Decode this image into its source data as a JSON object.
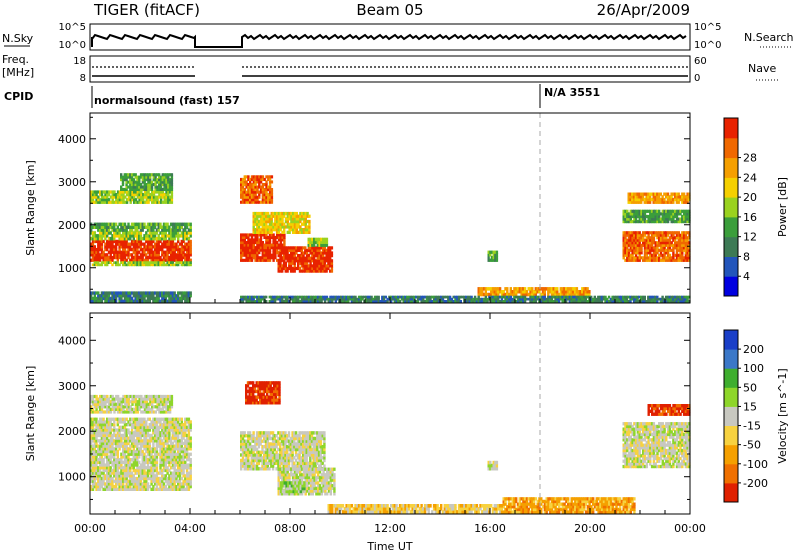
{
  "header": {
    "station": "TIGER (fitACF)",
    "beam": "Beam 05",
    "date": "26/Apr/2009"
  },
  "strip_labels": {
    "nsky": "N.Sky",
    "nsearch": "N.Search",
    "freq_line1": "Freq.",
    "freq_line2": "[MHz]",
    "nave": "Nave",
    "cpid": "CPID",
    "nsky_ticks": [
      "10^5",
      "10^0"
    ],
    "nsearch_ticks": [
      "10^5",
      "10^0"
    ],
    "freq_ticks": [
      "18",
      "8"
    ],
    "nave_ticks": [
      "60",
      "0"
    ]
  },
  "cpid": {
    "segment1": "normalsound (fast) 157",
    "segment2": "N/A 3551"
  },
  "chart_data": [
    {
      "type": "heatmap",
      "panel": "power",
      "ylabel": "Slant Range [km]",
      "xlabel": "",
      "ylim": [
        180,
        4600
      ],
      "yticks": [
        1000,
        2000,
        3000,
        4000
      ],
      "xlim": [
        0,
        24
      ],
      "colorbar": {
        "label": "Power [dB]",
        "ticks": [
          "4",
          "8",
          "12",
          "16",
          "20",
          "24",
          "28"
        ],
        "colors": [
          "#0000e0",
          "#2255bb",
          "#3d7a55",
          "#3b9e3b",
          "#9ad21f",
          "#f5d000",
          "#f59f00",
          "#f06800",
          "#e82200"
        ]
      },
      "regions": [
        {
          "t0": 0.0,
          "t1": 4.05,
          "r0": 1150,
          "r1": 1650,
          "level": 8
        },
        {
          "t0": 0.0,
          "t1": 4.05,
          "r0": 1650,
          "r1": 1850,
          "level": 4
        },
        {
          "t0": 0.0,
          "t1": 4.05,
          "r0": 1050,
          "r1": 1150,
          "level": 4
        },
        {
          "t0": 0.0,
          "t1": 4.05,
          "r0": 1850,
          "r1": 2050,
          "level": 3
        },
        {
          "t0": 0.0,
          "t1": 3.3,
          "r0": 2500,
          "r1": 2800,
          "level": 4
        },
        {
          "t0": 1.2,
          "t1": 3.3,
          "r0": 2800,
          "r1": 3200,
          "level": 3
        },
        {
          "t0": 6.0,
          "t1": 7.8,
          "r0": 1150,
          "r1": 1800,
          "level": 8
        },
        {
          "t0": 6.0,
          "t1": 7.3,
          "r0": 2500,
          "r1": 3150,
          "level": 7
        },
        {
          "t0": 6.5,
          "t1": 8.8,
          "r0": 1800,
          "r1": 2300,
          "level": 5
        },
        {
          "t0": 7.5,
          "t1": 9.7,
          "r0": 900,
          "r1": 1500,
          "level": 8
        },
        {
          "t0": 8.7,
          "t1": 9.5,
          "r0": 1500,
          "r1": 1700,
          "level": 4
        },
        {
          "t0": 15.9,
          "t1": 16.3,
          "r0": 1150,
          "r1": 1400,
          "level": 3
        },
        {
          "t0": 15.5,
          "t1": 20.0,
          "r0": 350,
          "r1": 550,
          "level": 6
        },
        {
          "t0": 0.0,
          "t1": 4.05,
          "r0": 200,
          "r1": 450,
          "level": 2
        },
        {
          "t0": 6.0,
          "t1": 24.0,
          "r0": 200,
          "r1": 350,
          "level": 2
        },
        {
          "t0": 21.3,
          "t1": 24.0,
          "r0": 1150,
          "r1": 1850,
          "level": 7
        },
        {
          "t0": 21.3,
          "t1": 24.0,
          "r0": 2050,
          "r1": 2350,
          "level": 3
        },
        {
          "t0": 21.5,
          "t1": 24.0,
          "r0": 2500,
          "r1": 2750,
          "level": 6
        }
      ]
    },
    {
      "type": "heatmap",
      "panel": "velocity",
      "ylabel": "Slant Range [km]",
      "xlabel": "Time UT",
      "ylim": [
        180,
        4600
      ],
      "yticks": [
        1000,
        2000,
        3000,
        4000
      ],
      "xlim": [
        0,
        24
      ],
      "xticks": [
        "00:00",
        "04:00",
        "08:00",
        "12:00",
        "16:00",
        "20:00",
        "00:00"
      ],
      "colorbar": {
        "label": "Velocity [m s^-1]",
        "ticks": [
          "200",
          "100",
          "50",
          "15",
          "-15",
          "-50",
          "-100",
          "-200"
        ],
        "colors": [
          "#1a3fc8",
          "#3b78c8",
          "#3fae2f",
          "#8ed62a",
          "#c8c8c0",
          "#f7d240",
          "#f5a000",
          "#f07000",
          "#e02000"
        ]
      },
      "regions": [
        {
          "t0": 0.0,
          "t1": 4.05,
          "r0": 700,
          "r1": 2300,
          "level": 4
        },
        {
          "t0": 0.0,
          "t1": 3.3,
          "r0": 2400,
          "r1": 2800,
          "level": 4
        },
        {
          "t0": 6.0,
          "t1": 9.4,
          "r0": 1150,
          "r1": 2000,
          "level": 4
        },
        {
          "t0": 7.5,
          "t1": 9.8,
          "r0": 600,
          "r1": 1200,
          "level": 4
        },
        {
          "t0": 7.6,
          "t1": 8.6,
          "r0": 650,
          "r1": 900,
          "level": 3
        },
        {
          "t0": 6.2,
          "t1": 7.6,
          "r0": 2600,
          "r1": 3100,
          "level": 8
        },
        {
          "t0": 21.3,
          "t1": 24.0,
          "r0": 1200,
          "r1": 2200,
          "level": 4
        },
        {
          "t0": 22.3,
          "t1": 24.0,
          "r0": 2350,
          "r1": 2600,
          "level": 8
        },
        {
          "t0": 16.5,
          "t1": 21.8,
          "r0": 200,
          "r1": 550,
          "level": 6
        },
        {
          "t0": 9.5,
          "t1": 16.5,
          "r0": 200,
          "r1": 400,
          "level": 5
        },
        {
          "t0": 15.9,
          "t1": 16.3,
          "r0": 1150,
          "r1": 1350,
          "level": 4
        }
      ]
    }
  ]
}
